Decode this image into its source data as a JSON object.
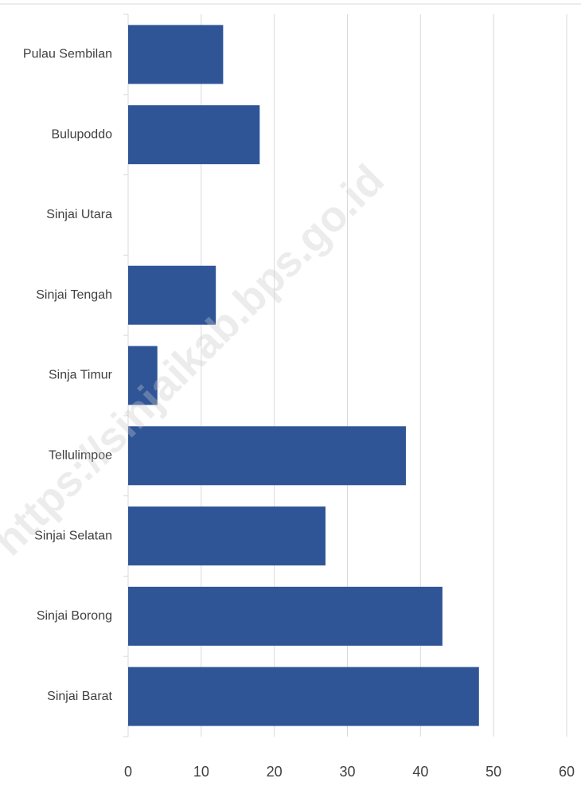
{
  "chart_data": {
    "type": "hbar",
    "categories": [
      "Pulau Sembilan",
      "Bulupoddo",
      "Sinjai Utara",
      "Sinjai Tengah",
      "Sinja Timur",
      "Tellulimpoe",
      "Sinjai Selatan",
      "Sinjai Borong",
      "Sinjai Barat"
    ],
    "values": [
      13,
      18,
      0,
      12,
      4,
      38,
      27,
      43,
      48
    ],
    "color": "#2f5597",
    "xlim": [
      0,
      60
    ],
    "xticks": [
      0,
      10,
      20,
      30,
      40,
      50,
      60
    ],
    "grid": true,
    "watermark": "https://sinjaikab.bps.go.id"
  }
}
